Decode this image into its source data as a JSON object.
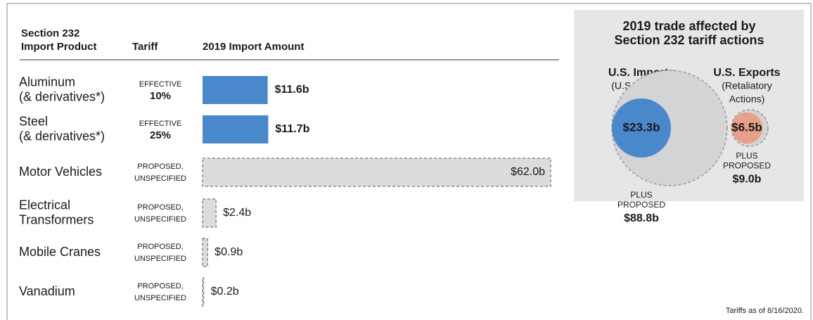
{
  "chart_data": {
    "type": "bar",
    "orientation": "horizontal",
    "column_headers": [
      [
        "Section 232",
        "Import Product"
      ],
      [
        "Tariff"
      ],
      [
        "2019 Import Amount"
      ]
    ],
    "categories": [
      [
        "Aluminum",
        "(& derivatives*)"
      ],
      [
        "Steel",
        "(& derivatives*)"
      ],
      [
        "Motor Vehicles"
      ],
      [
        "Electrical",
        "Transformers"
      ],
      [
        "Mobile Cranes"
      ],
      [
        "Vanadium"
      ]
    ],
    "tariffs": [
      [
        "EFFECTIVE",
        "10%"
      ],
      [
        "EFFECTIVE",
        "25%"
      ],
      [
        "PROPOSED,",
        "UNSPECIFIED"
      ],
      [
        "PROPOSED,",
        "UNSPECIFIED"
      ],
      [
        "PROPOSED,",
        "UNSPECIFIED"
      ],
      [
        "PROPOSED,",
        "UNSPECIFIED"
      ]
    ],
    "values": [
      11.6,
      11.7,
      62.0,
      2.4,
      0.9,
      0.2
    ],
    "value_labels": [
      "$11.6b",
      "$11.7b",
      "$62.0b",
      "$2.4b",
      "$0.9b",
      "$0.2b"
    ],
    "colors": [
      "#4a88cc",
      "#4a88cc",
      "#dcdcdc",
      "#dcdcdc",
      "#dcdcdc",
      "#dcdcdc"
    ],
    "dashed": [
      false,
      false,
      true,
      true,
      true,
      true
    ]
  },
  "summary": {
    "title": [
      "2019 trade affected by",
      "Section 232 tariff actions"
    ],
    "columns": [
      {
        "name": "U.S. Imports",
        "subtitle": [
          "(U.S. Actions)"
        ],
        "value": 23.3,
        "value_label": "$23.3b",
        "color": "#4a88cc",
        "plus_label": [
          "PLUS",
          "PROPOSED"
        ],
        "proposed_value": 88.8,
        "proposed_label": "$88.8b"
      },
      {
        "name": "U.S. Exports",
        "subtitle": [
          "(Retaliatory",
          "Actions)"
        ],
        "value": 6.5,
        "value_label": "$6.5b",
        "color": "#e8a08a",
        "plus_label": [
          "PLUS",
          "PROPOSED"
        ],
        "proposed_value": 9.0,
        "proposed_label": "$9.0b"
      }
    ]
  },
  "footnote": "Tariffs as of 8/16/2020."
}
